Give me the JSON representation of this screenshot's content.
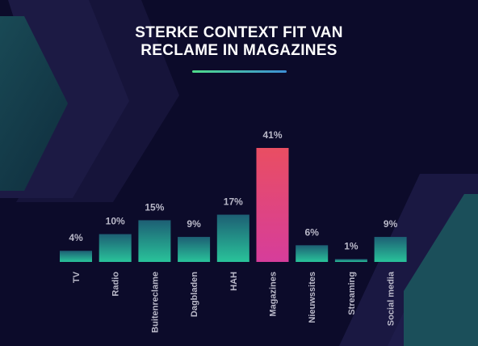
{
  "title_lines": [
    "STERKE CONTEXT FIT VAN",
    "RECLAME IN MAGAZINES"
  ],
  "colors": {
    "background": "#0c0b2a",
    "bar_top": "#1d5f74",
    "bar_bottom": "#29c39a",
    "highlight_top": "#e94e62",
    "highlight_bottom": "#d63d9b",
    "label": "#b9b8c8",
    "underline_start": "#4fdc8a",
    "underline_end": "#3d8fd6"
  },
  "chart_data": {
    "type": "bar",
    "categories": [
      "TV",
      "Radio",
      "Buitenreclame",
      "Dagbladen",
      "HAH",
      "Magazines",
      "Nieuwssites",
      "Streaming",
      "Social media"
    ],
    "values": [
      4,
      10,
      15,
      9,
      17,
      41,
      6,
      1,
      9
    ],
    "value_labels": [
      "4%",
      "10%",
      "15%",
      "9%",
      "17%",
      "41%",
      "6%",
      "1%",
      "9%"
    ],
    "highlight": "Magazines",
    "ylim": [
      0,
      41
    ],
    "grid": false,
    "legend": "none"
  }
}
